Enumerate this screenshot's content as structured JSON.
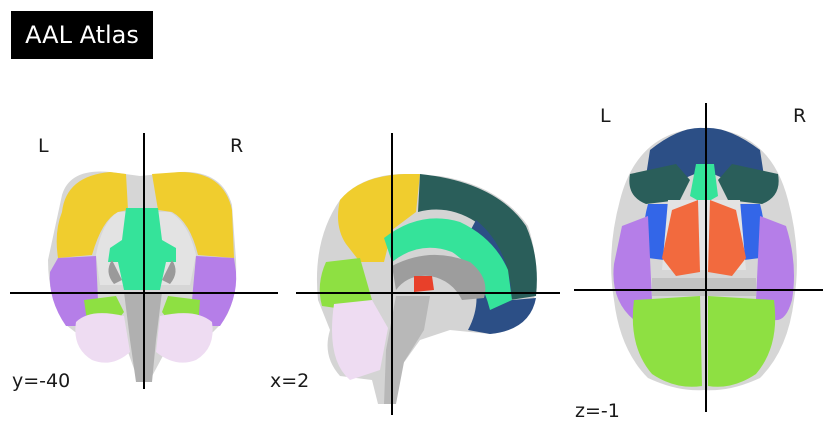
{
  "title": "AAL Atlas",
  "views": [
    {
      "name": "coronal",
      "coord_label": "y=-40",
      "left_label": "L",
      "right_label": "R"
    },
    {
      "name": "sagittal",
      "coord_label": "x=2"
    },
    {
      "name": "axial",
      "coord_label": "z=-1",
      "left_label": "L",
      "right_label": "R"
    }
  ],
  "colors": {
    "yellow": "#f0cd2e",
    "mint": "#35e39a",
    "purple": "#b57ee8",
    "lime": "#8ee042",
    "pink": "#eedcf2",
    "teal": "#2a5e5a",
    "navy": "#2c4f86",
    "blue": "#3366e8",
    "orange": "#f26a3e",
    "red": "#e8402a",
    "gray": "#b9b9b9",
    "light_gray": "#e3e3e3"
  }
}
